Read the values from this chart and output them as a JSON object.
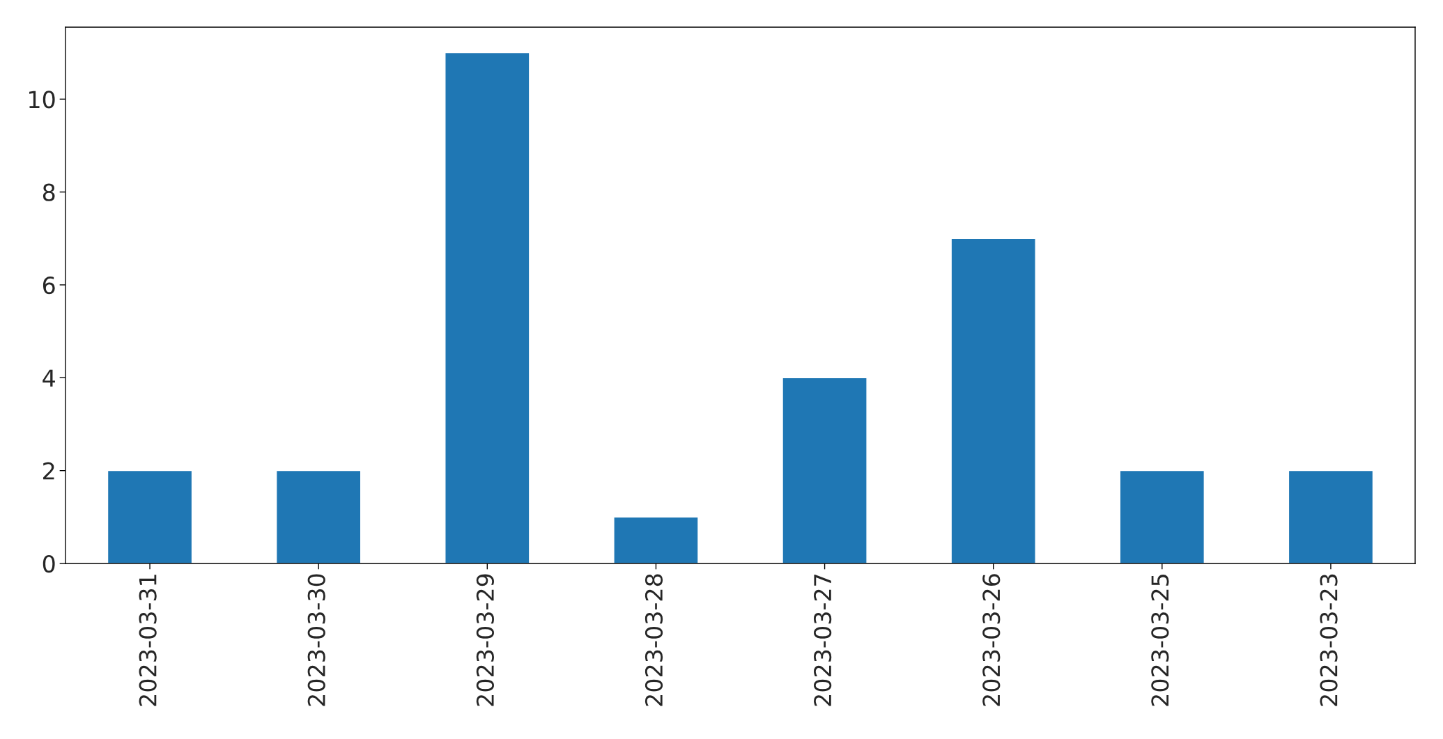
{
  "chart_data": {
    "type": "bar",
    "categories": [
      "2023-03-31",
      "2023-03-30",
      "2023-03-29",
      "2023-03-28",
      "2023-03-27",
      "2023-03-26",
      "2023-03-25",
      "2023-03-23"
    ],
    "values": [
      2,
      2,
      11,
      1,
      4,
      7,
      2,
      2
    ],
    "color": "#1f77b4",
    "ylim": [
      0,
      11.55
    ],
    "yticks": [
      0,
      2,
      4,
      6,
      8,
      10
    ],
    "grid": false,
    "legend": false
  }
}
